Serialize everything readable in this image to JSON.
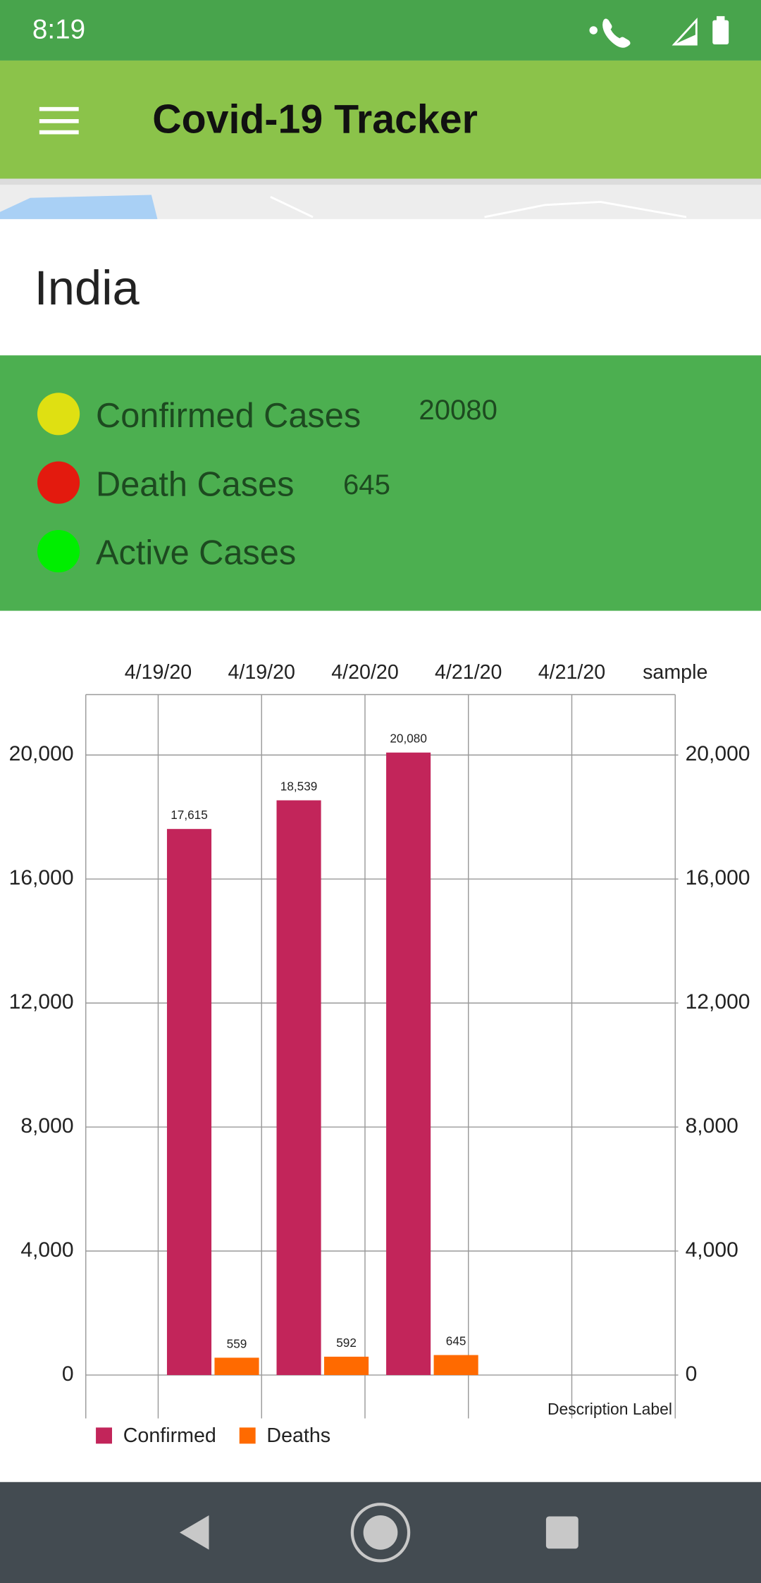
{
  "status_bar": {
    "time": "8:19"
  },
  "app_bar": {
    "title": "Covid-19 Tracker"
  },
  "country": "India",
  "stats": [
    {
      "label": "Confirmed Cases",
      "value": 20080
    },
    {
      "label": "Death Cases",
      "value": 645
    },
    {
      "label": "Active Cases"
    }
  ],
  "chart_data": {
    "type": "bar",
    "x": [
      0.53,
      1.59,
      2.65
    ],
    "xlim": [
      -0.7,
      5
    ],
    "xticks": [
      {
        "value": 0,
        "label": "4/19/20"
      },
      {
        "value": 1,
        "label": "4/19/20"
      },
      {
        "value": 2,
        "label": "4/20/20"
      },
      {
        "value": 3,
        "label": "4/21/20"
      },
      {
        "value": 4,
        "label": "4/21/20"
      },
      {
        "value": 5,
        "label": "sample"
      }
    ],
    "ylim": [
      -1400,
      21950
    ],
    "yticks": [
      0,
      {
        "value": 4000,
        "label": "4,000"
      },
      {
        "value": 8000,
        "label": "8,000"
      },
      {
        "value": 12000,
        "label": "12,000"
      },
      {
        "value": 16000,
        "label": "16,000"
      },
      {
        "value": 20000,
        "label": "20,000"
      }
    ],
    "y2lim": [
      -1400,
      21950
    ],
    "y2ticks": [
      0,
      {
        "value": 4000,
        "label": "4,000"
      },
      {
        "value": 8000,
        "label": "8,000"
      },
      {
        "value": 12000,
        "label": "12,000"
      },
      {
        "value": 16000,
        "label": "16,000"
      },
      {
        "value": 20000,
        "label": "20,000"
      }
    ],
    "grid": true,
    "legend": "bottom-left",
    "description": "Description Label",
    "series": [
      {
        "name": "Confirmed",
        "color": "#c2255a",
        "values": [
          17615,
          18539,
          20080
        ],
        "value_labels": [
          "17,615",
          "18,539",
          "20,080"
        ]
      },
      {
        "name": "Deaths",
        "color": "#ff6a00",
        "values": [
          559,
          592,
          645
        ]
      }
    ]
  }
}
